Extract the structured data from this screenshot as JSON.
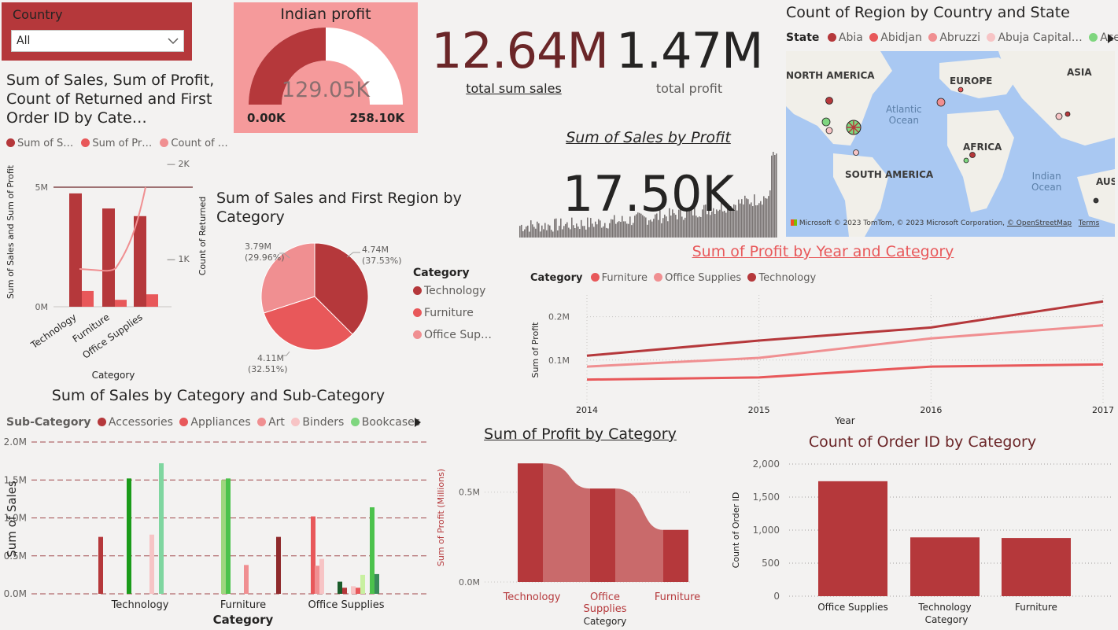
{
  "colors": {
    "dark": "#b5383b",
    "mid": "#e8585a",
    "light": "#f08f91",
    "pale": "#f7c4c5",
    "green": "#7fd67f",
    "ink": "#252423",
    "maroon": "#6b2628"
  },
  "slicer": {
    "title": "Country",
    "value": "All"
  },
  "gauge": {
    "title": "Indian profit",
    "value_label": "129.05K",
    "min_label": "0.00K",
    "max_label": "258.10K",
    "value": 129.05,
    "max": 258.1
  },
  "kpi": {
    "sales_value": "12.64M",
    "sales_label": "total sum sales",
    "profit_value": "1.47M",
    "profit_label": "total profit"
  },
  "combo": {
    "title": "Sum of Sales, Sum of Profit, Count of Returned and First Order ID by Cate…",
    "legend": [
      "Sum of S…",
      "Sum of Pr…",
      "Count of …"
    ],
    "ylabel": "Sum of Sales and Sum of Profit",
    "y2label": "Count of Returned",
    "xlabel": "Category",
    "yticks": [
      "5M",
      "0M"
    ],
    "y2ticks": [
      "2K",
      "1K"
    ]
  },
  "pie": {
    "title": "Sum of Sales and First Region by Category",
    "legend_title": "Category",
    "labels": [
      {
        "v": "4.74M",
        "p": "(37.53%)"
      },
      {
        "v": "4.11M",
        "p": "(32.51%)"
      },
      {
        "v": "3.79M",
        "p": "(29.96%)"
      }
    ],
    "legend": [
      "Technology",
      "Furniture",
      "Office Sup…"
    ]
  },
  "spark": {
    "title": "Sum of Sales by Profit",
    "value": "17.50K"
  },
  "map": {
    "title": "Count of Region by Country and State",
    "legend_title": "State",
    "legend": [
      "Abia",
      "Abidjan",
      "Abruzzi",
      "Abuja Capital…",
      "Aceh"
    ],
    "regions": [
      "NORTH AMERICA",
      "EUROPE",
      "ASIA",
      "AFRICA",
      "SOUTH AMERICA",
      "AUS"
    ],
    "oceans": [
      "Atlantic",
      "Ocean",
      "Indian",
      "Ocean"
    ],
    "brand": "Microsoft",
    "attribution": "© 2023 TomTom, © 2023 Microsoft Corporation,",
    "osm": "© OpenStreetMap",
    "terms": "Terms"
  },
  "subcat": {
    "title": "Sum of Sales by Category and Sub-Category",
    "legend_title": "Sub-Category",
    "legend": [
      "Accessories",
      "Appliances",
      "Art",
      "Binders",
      "Bookcases"
    ],
    "ylabel": "Sum of Sales",
    "xlabel": "Category",
    "yticks": [
      "2.0M",
      "1.5M",
      "1.0M",
      "0.5M",
      "0.0M"
    ]
  },
  "ribbon": {
    "title": "Sum of Profit by Category",
    "ylabel": "Sum of Profit (Millions)",
    "xlabel": "Category",
    "yticks": [
      "0.5M",
      "0.0M"
    ],
    "cats": [
      "Technology",
      "Office",
      "Supplies",
      "Furniture"
    ]
  },
  "orders": {
    "title": "Count of Order ID by Category",
    "ylabel": "Count of Order ID",
    "xlabel": "Category",
    "yticks": [
      "2,000",
      "1,500",
      "1,000",
      "500",
      "0"
    ]
  },
  "chart_data": [
    {
      "type": "bar",
      "title": "Sum of Sales, Sum of Profit, Count of Returned and First Order ID by Cate…",
      "categories": [
        "Technology",
        "Furniture",
        "Office Supplies"
      ],
      "series": [
        {
          "name": "Sum of S…",
          "values": [
            4.74,
            4.11,
            3.79
          ]
        },
        {
          "name": "Sum of Pr…",
          "values": [
            0.66,
            0.29,
            0.52
          ]
        },
        {
          "name": "Count of …",
          "values": [
            1350,
            1250,
            2000
          ]
        }
      ],
      "xlabel": "Category",
      "ylabel": "Sum of Sales and Sum of Profit"
    },
    {
      "type": "pie",
      "title": "Sum of Sales and First Region by Category",
      "categories": [
        "Technology",
        "Furniture",
        "Office Supplies"
      ],
      "values": [
        4.74,
        4.11,
        3.79
      ]
    },
    {
      "type": "line",
      "title": "Sum of Profit by Year and Category",
      "x": [
        2014,
        2015,
        2016,
        2017
      ],
      "series": [
        {
          "name": "Furniture",
          "values": [
            0.055,
            0.06,
            0.085,
            0.09
          ]
        },
        {
          "name": "Office Supplies",
          "values": [
            0.085,
            0.105,
            0.15,
            0.18
          ]
        },
        {
          "name": "Technology",
          "values": [
            0.11,
            0.145,
            0.175,
            0.235
          ]
        }
      ],
      "xlabel": "Year",
      "ylabel": "Sum of Profit",
      "yticks": [
        "0.2M",
        "0.1M"
      ],
      "xticks": [
        "2014",
        "2015",
        "2016",
        "2017"
      ],
      "legend_title": "Category",
      "ylim": [
        0,
        0.25
      ]
    },
    {
      "type": "bar",
      "title": "Sum of Sales by Category and Sub-Category",
      "categories": [
        "Technology",
        "Furniture",
        "Office Supplies"
      ],
      "values": {
        "Technology": [
          0.75,
          1.52,
          0.78,
          1.72
        ],
        "Furniture": [
          1.5,
          1.52,
          0.38,
          0.75
        ],
        "Office Supplies": [
          1.02,
          0.37,
          0.46,
          0.16,
          0.08,
          0.1,
          0.08,
          0.25,
          1.14,
          0.26
        ]
      },
      "ylim": [
        0,
        2
      ]
    },
    {
      "type": "bar",
      "title": "Sum of Profit by Category",
      "categories": [
        "Technology",
        "Office Supplies",
        "Furniture"
      ],
      "values": [
        0.66,
        0.52,
        0.29
      ],
      "ylim": [
        0,
        0.7
      ]
    },
    {
      "type": "bar",
      "title": "Count of Order ID by Category",
      "categories": [
        "Office Supplies",
        "Technology",
        "Furniture"
      ],
      "values": [
        1740,
        890,
        880
      ],
      "ylim": [
        0,
        2000
      ]
    }
  ]
}
